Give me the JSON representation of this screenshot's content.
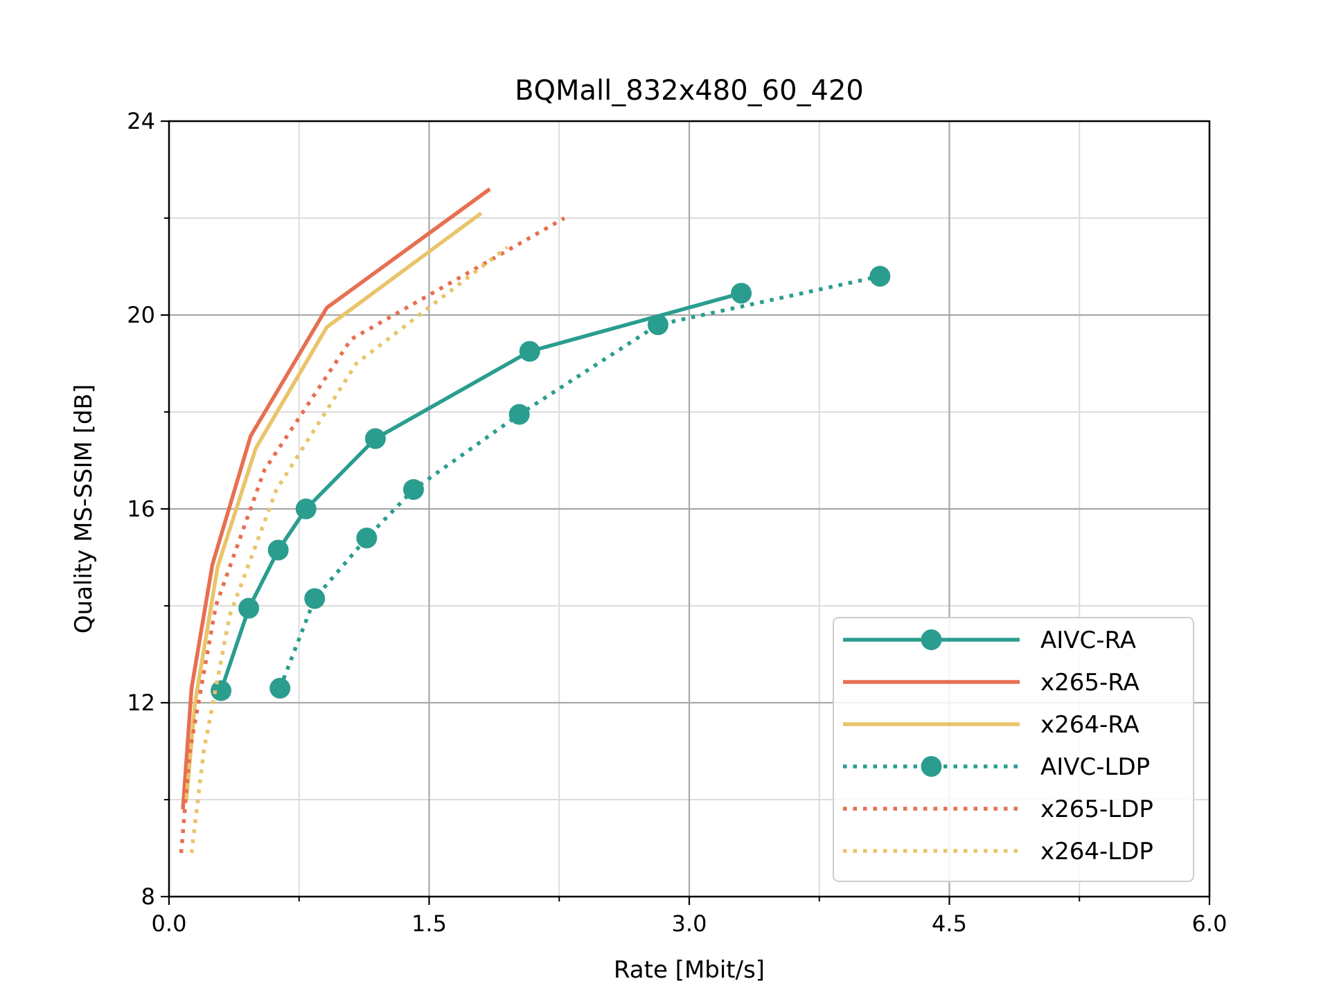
{
  "chart_data": {
    "type": "line",
    "title": "BQMall_832x480_60_420",
    "xlabel": "Rate [Mbit/s]",
    "ylabel": "Quality MS-SSIM [dB]",
    "xlim": [
      0.0,
      6.0
    ],
    "ylim": [
      8,
      24
    ],
    "xticks": [
      0.0,
      1.5,
      3.0,
      4.5,
      6.0
    ],
    "xtick_labels": [
      "0.0",
      "1.5",
      "3.0",
      "4.5",
      "6.0"
    ],
    "xminor": [
      0.75,
      2.25,
      3.75,
      5.25
    ],
    "yticks": [
      8,
      12,
      16,
      20,
      24
    ],
    "ytick_labels": [
      "8",
      "12",
      "16",
      "20",
      "24"
    ],
    "yminor": [
      10,
      14,
      18,
      22
    ],
    "grid": true,
    "legend_position": "lower-right",
    "series": [
      {
        "name": "AIVC-RA",
        "color": "#2a9d8f",
        "style": "solid",
        "marker": "circle",
        "x": [
          0.3,
          0.46,
          0.63,
          0.79,
          1.19,
          2.08,
          3.3
        ],
        "y": [
          12.25,
          13.95,
          15.15,
          16.0,
          17.45,
          19.25,
          20.45
        ]
      },
      {
        "name": "x265-RA",
        "color": "#e76f51",
        "style": "solid",
        "marker": "none",
        "x": [
          0.08,
          0.13,
          0.25,
          0.47,
          0.91,
          1.85
        ],
        "y": [
          9.8,
          12.3,
          14.85,
          17.5,
          20.15,
          22.6
        ]
      },
      {
        "name": "x264-RA",
        "color": "#e9c46a",
        "style": "solid",
        "marker": "none",
        "x": [
          0.1,
          0.15,
          0.28,
          0.5,
          0.91,
          1.8
        ],
        "y": [
          10.0,
          12.0,
          14.8,
          17.25,
          19.75,
          22.1
        ]
      },
      {
        "name": "AIVC-LDP",
        "color": "#2a9d8f",
        "style": "dotted",
        "marker": "circle",
        "x": [
          0.64,
          0.84,
          1.14,
          1.41,
          2.02,
          2.82,
          4.1
        ],
        "y": [
          12.3,
          14.15,
          15.4,
          16.4,
          17.95,
          19.8,
          20.8
        ]
      },
      {
        "name": "x265-LDP",
        "color": "#e76f51",
        "style": "dotted",
        "marker": "none",
        "x": [
          0.07,
          0.12,
          0.27,
          0.55,
          1.05,
          2.28
        ],
        "y": [
          8.9,
          11.0,
          14.0,
          16.8,
          19.5,
          22.0
        ]
      },
      {
        "name": "x264-LDP",
        "color": "#e9c46a",
        "style": "dotted",
        "marker": "none",
        "x": [
          0.13,
          0.2,
          0.35,
          0.62,
          1.08,
          1.95
        ],
        "y": [
          8.9,
          11.0,
          13.8,
          16.4,
          19.0,
          21.4
        ]
      }
    ]
  }
}
